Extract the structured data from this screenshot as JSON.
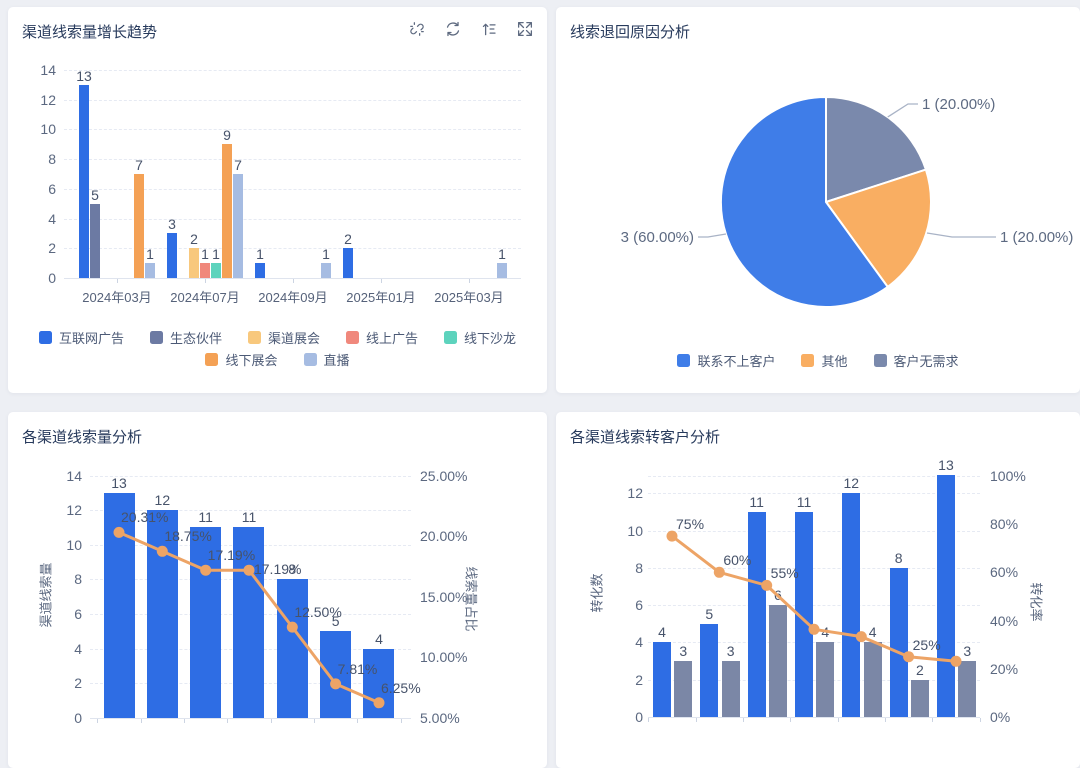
{
  "page": {
    "background": "#edeff4",
    "panel_background": "#ffffff"
  },
  "colors": {
    "blue": "#2e6de4",
    "slate": "#6c7aa3",
    "light_yellow": "#f8c87d",
    "salmon": "#f0887c",
    "teal": "#5dd3bd",
    "orange": "#f4a155",
    "periwinkle": "#a6bce2",
    "pie_blue": "#3f7de8",
    "pie_orange": "#f9ae62",
    "pie_slate": "#7a89ac",
    "gray_bar": "#7b87a6",
    "line_orange": "#eda466",
    "title_text": "#273a5c",
    "axis_text": "#5b6880",
    "value_text": "#47536a",
    "legend_text": "#4c5a76",
    "icon": "#5e6a80",
    "grid_line": "#e6eaf3",
    "axis_line": "#dfe4ee"
  },
  "panels": {
    "trend": {
      "title": "渠道线索量增长趋势",
      "header_icons": [
        "unlink-icon",
        "refresh-icon",
        "sort-asc-icon",
        "expand-icon"
      ]
    },
    "pie": {
      "title": "线索退回原因分析"
    },
    "volume": {
      "title": "各渠道线索量分析"
    },
    "convert": {
      "title": "各渠道线索转客户分析"
    }
  },
  "chart_data": [
    {
      "id": "trend",
      "type": "bar",
      "title": "渠道线索量增长趋势",
      "categories": [
        "2024年03月",
        "2024年07月",
        "2024年09月",
        "2025年01月",
        "2025年03月"
      ],
      "series": [
        {
          "name": "互联网广告",
          "color_key": "blue",
          "values": [
            13,
            3,
            1,
            2,
            null
          ]
        },
        {
          "name": "生态伙伴",
          "color_key": "slate",
          "values": [
            5,
            null,
            null,
            null,
            null
          ]
        },
        {
          "name": "渠道展会",
          "color_key": "light_yellow",
          "values": [
            null,
            2,
            null,
            null,
            null
          ]
        },
        {
          "name": "线上广告",
          "color_key": "salmon",
          "values": [
            null,
            1,
            null,
            null,
            null
          ]
        },
        {
          "name": "线下沙龙",
          "color_key": "teal",
          "values": [
            null,
            1,
            null,
            null,
            null
          ]
        },
        {
          "name": "线下展会",
          "color_key": "orange",
          "values": [
            7,
            9,
            null,
            null,
            null
          ]
        },
        {
          "name": "直播",
          "color_key": "periwinkle",
          "values": [
            1,
            7,
            1,
            null,
            1
          ]
        }
      ],
      "ylim": [
        0,
        14
      ],
      "yticks": [
        0,
        2,
        4,
        6,
        8,
        10,
        12,
        14
      ],
      "grid": "dashed-horizontal",
      "legend_rows": [
        [
          "互联网广告",
          "生态伙伴",
          "渠道展会",
          "线上广告",
          "线下沙龙"
        ],
        [
          "线下展会",
          "直播"
        ]
      ]
    },
    {
      "id": "pie",
      "type": "pie",
      "title": "线索退回原因分析",
      "start": "top",
      "direction": "clockwise",
      "slices": [
        {
          "name": "客户无需求",
          "value": 1,
          "percent": "20.00%",
          "callout": "1 (20.00%)",
          "color_key": "pie_slate"
        },
        {
          "name": "其他",
          "value": 1,
          "percent": "20.00%",
          "callout": "1 (20.00%)",
          "color_key": "pie_orange"
        },
        {
          "name": "联系不上客户",
          "value": 3,
          "percent": "60.00%",
          "callout": "3 (60.00%)",
          "color_key": "pie_blue"
        }
      ],
      "legend": [
        "联系不上客户",
        "其他",
        "客户无需求"
      ]
    },
    {
      "id": "volume",
      "type": "bar+line",
      "title": "各渠道线索量分析",
      "x_axis_labels_visible": false,
      "bars": {
        "color_key": "blue",
        "values": [
          13,
          12,
          11,
          11,
          8,
          5,
          4
        ]
      },
      "line": {
        "color_key": "line_orange",
        "values_pct": [
          20.31,
          18.75,
          17.19,
          17.19,
          12.5,
          7.81,
          6.25
        ],
        "labels": [
          "20.31%",
          "18.75%",
          "17.19%",
          "17.19%",
          "12.50%",
          "7.81%",
          "6.25%"
        ]
      },
      "left_axis": {
        "name": "渠道线索量",
        "ticks": [
          0,
          2,
          4,
          6,
          8,
          10,
          12,
          14
        ],
        "max": 14
      },
      "right_axis": {
        "name": "线索量占比",
        "tick_labels": [
          "25.00%",
          "20.00%",
          "15.00%",
          "10.00%",
          "5.00%"
        ],
        "min": 5,
        "max": 25
      }
    },
    {
      "id": "convert",
      "type": "bar+line",
      "title": "各渠道线索转客户分析",
      "x_axis_labels_visible": false,
      "bars_primary": {
        "color_key": "blue",
        "values": [
          4,
          5,
          11,
          11,
          12,
          8,
          13
        ]
      },
      "bars_secondary": {
        "color_key": "gray_bar",
        "values": [
          3,
          3,
          6,
          4,
          4,
          2,
          3
        ]
      },
      "line": {
        "color_key": "line_orange",
        "values_pct": [
          75,
          60,
          54.55,
          36.36,
          33.33,
          25,
          23.08
        ],
        "labels": [
          "75%",
          "60%",
          "55%",
          null,
          null,
          "25%",
          null
        ]
      },
      "left_axis": {
        "name": "转化数",
        "ticks": [
          0,
          2,
          4,
          6,
          8,
          10,
          12
        ],
        "max": 13
      },
      "right_axis": {
        "name": "转化率",
        "tick_labels": [
          "100%",
          "80%",
          "60%",
          "40%",
          "20%",
          "0%"
        ],
        "min": 0,
        "max": 100
      }
    }
  ]
}
